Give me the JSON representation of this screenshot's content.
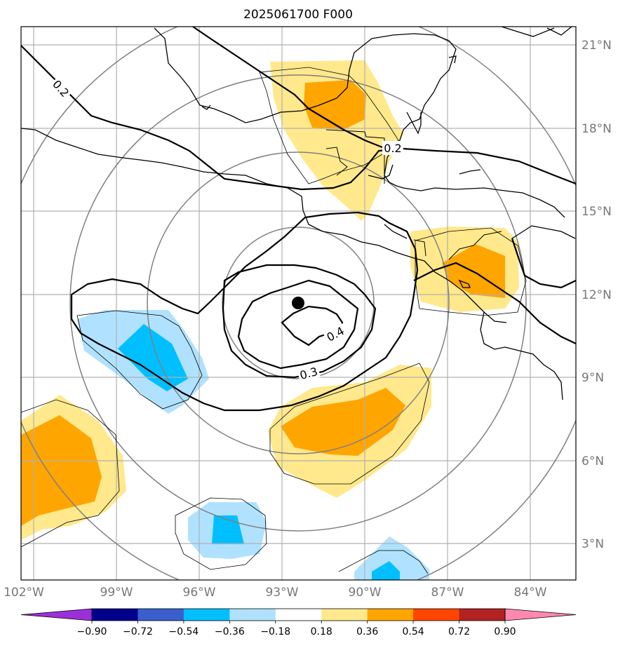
{
  "title": "2025061700 F000",
  "lon_labels": [
    "102°W",
    "99°W",
    "96°W",
    "93°W",
    "90°W",
    "87°W",
    "84°W"
  ],
  "lat_labels": [
    "21°N",
    "18°N",
    "15°N",
    "12°N",
    "9°N",
    "6°N",
    "3°N"
  ],
  "colorbar": {
    "tick_labels": [
      "−0.90",
      "−0.72",
      "−0.54",
      "−0.36",
      "−0.18",
      "0.18",
      "0.36",
      "0.54",
      "0.72",
      "0.90"
    ],
    "colors": [
      "#9b30d9",
      "#00008b",
      "#3a5fcd",
      "#00bfff",
      "#b0e2ff",
      "#ffffff",
      "#ffe98c",
      "#ffa500",
      "#ff4500",
      "#b22222",
      "#ff88b0"
    ]
  },
  "contour_labels": {
    "a": "0.2",
    "b": "0.2",
    "c": "0.3",
    "d": "0.4"
  },
  "fill_colors": {
    "yellow": "#ffe98c",
    "orange": "#ffa500",
    "lightblue": "#b0e2ff",
    "blue": "#00bfff"
  }
}
